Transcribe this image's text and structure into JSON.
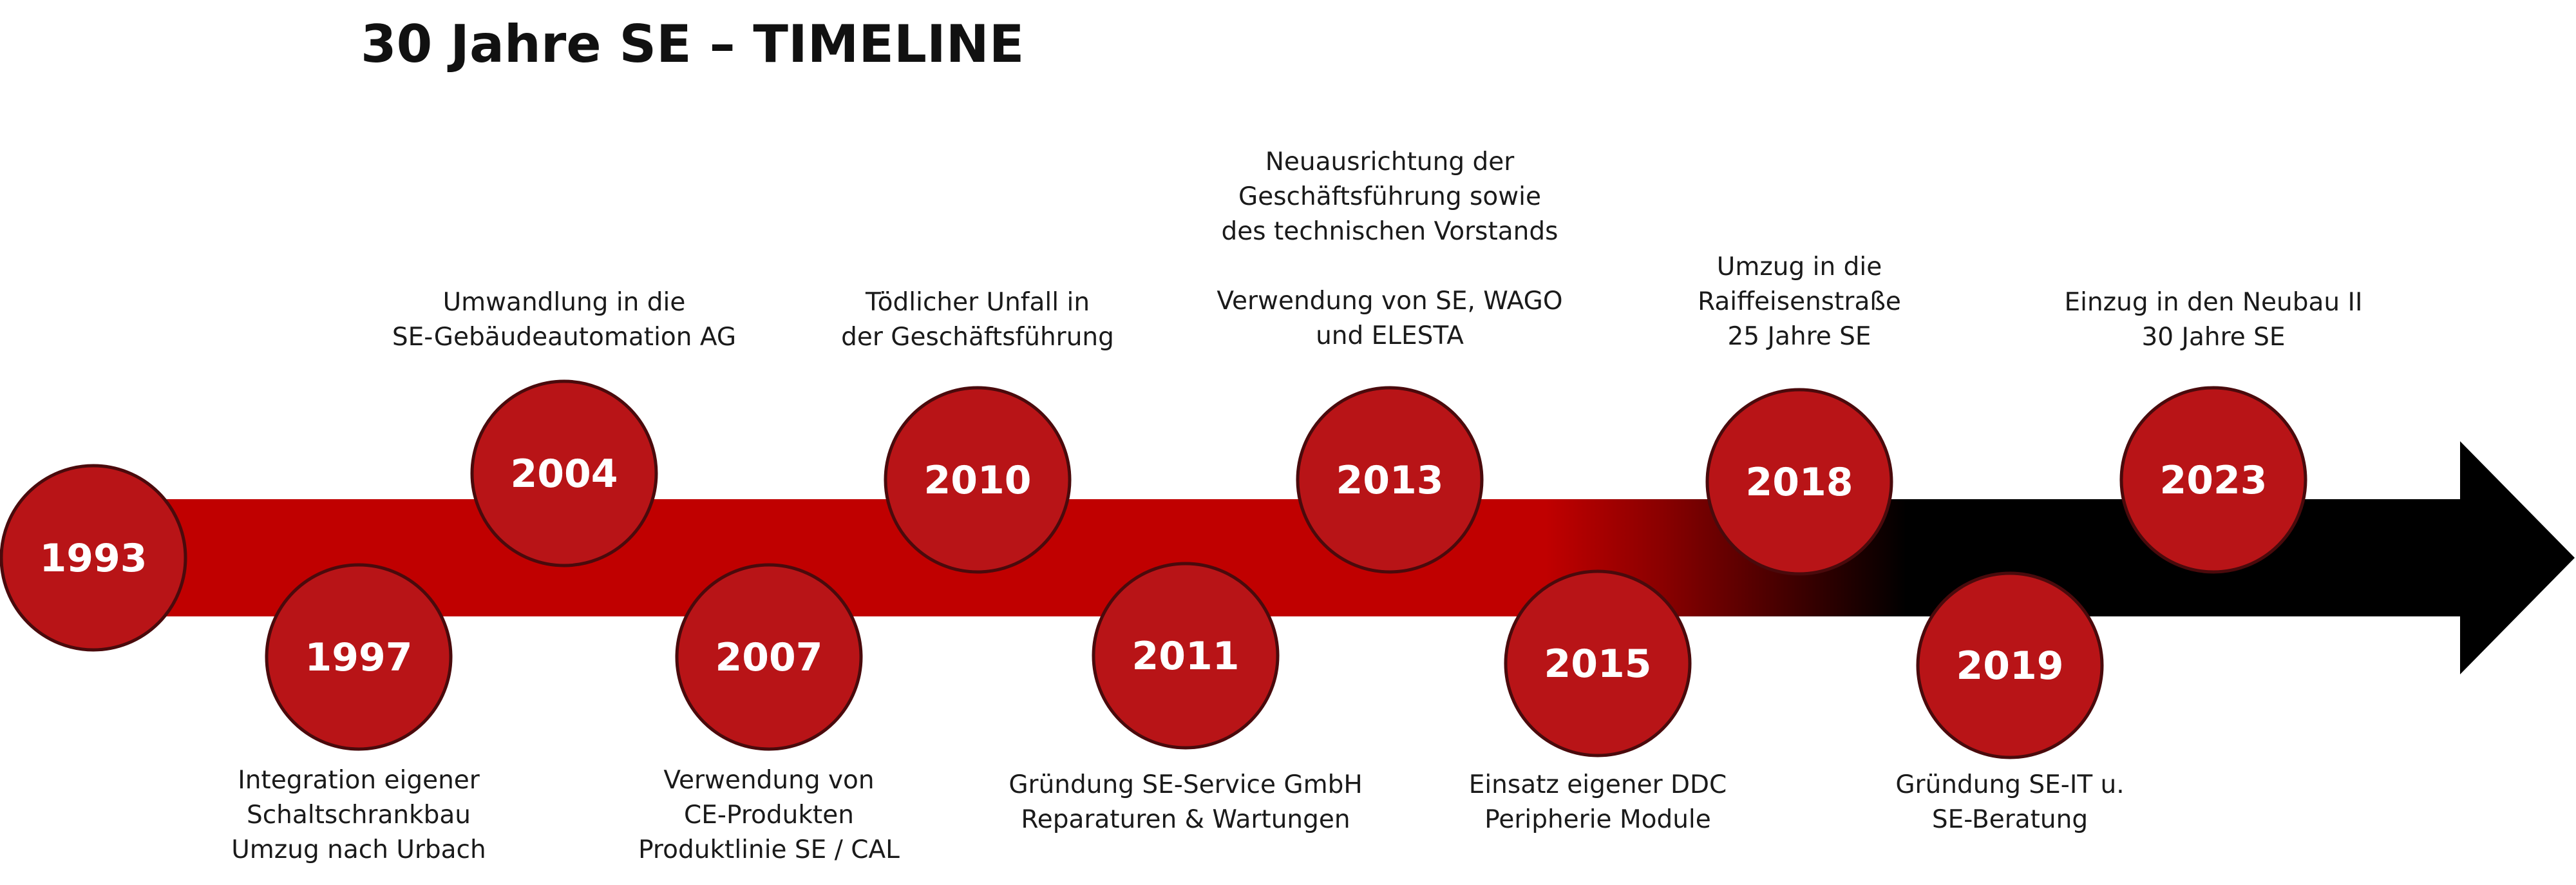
{
  "title": "30 Jahre SE – TIMELINE",
  "colors": {
    "arrow_start": "#c00000",
    "arrow_end": "#000000",
    "circle_fill": "#b81417",
    "circle_stroke": "#4a0a0c",
    "year_text": "#ffffff"
  },
  "events": [
    {
      "year": "1993",
      "lines": []
    },
    {
      "year": "1997",
      "lines": [
        "Integration eigener",
        "Schaltschrankbau",
        "Umzug nach Urbach"
      ]
    },
    {
      "year": "2004",
      "lines": [
        "Umwandlung in die",
        "SE-Gebäudeautomation AG"
      ]
    },
    {
      "year": "2007",
      "lines": [
        "Verwendung von",
        "CE-Produkten",
        "Produktlinie SE / CAL"
      ]
    },
    {
      "year": "2010",
      "lines": [
        "Tödlicher Unfall in",
        "der Geschäftsführung"
      ]
    },
    {
      "year": "2011",
      "lines": [
        "Gründung SE-Service GmbH",
        "Reparaturen & Wartungen"
      ]
    },
    {
      "year": "2013",
      "lines": [
        "Neuausrichtung der",
        "Geschäftsführung sowie",
        "des technischen Vorstands",
        "",
        "Verwendung von SE, WAGO",
        "und ELESTA"
      ]
    },
    {
      "year": "2015",
      "lines": [
        "Einsatz eigener DDC",
        "Peripherie Module"
      ]
    },
    {
      "year": "2018",
      "lines": [
        "Umzug in die",
        "Raiffeisenstraße",
        "25 Jahre SE"
      ]
    },
    {
      "year": "2019",
      "lines": [
        "Gründung SE-IT u.",
        "SE-Beratung"
      ]
    },
    {
      "year": "2023",
      "lines": [
        "Einzug in den Neubau II",
        "30 Jahre SE"
      ]
    }
  ]
}
